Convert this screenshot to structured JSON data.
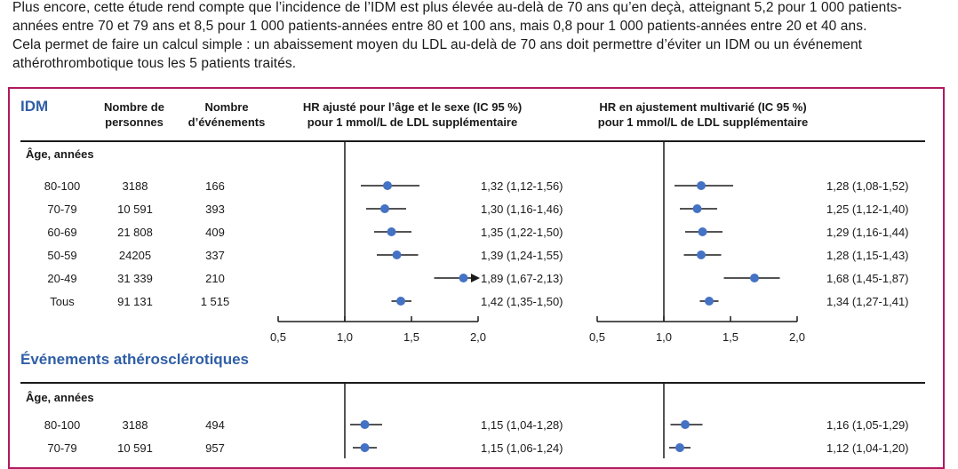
{
  "intro": {
    "lines": [
      "Plus encore, cette étude rend compte que l’incidence de l’IDM est plus élevée au-delà de 70 ans qu’en deçà, atteignant 5,2 pour 1 000 patients-",
      "années entre 70 et 79 ans et 8,5 pour 1 000 patients-années entre 80 et 100 ans, mais 0,8 pour 1 000 patients-années entre 20 et 40 ans.",
      "Cela permet de faire un calcul simple : un abaissement moyen du LDL au-delà de 70 ans doit permettre d’éviter un IDM ou un événement",
      "athérothrombotique tous les 5 patients traités."
    ]
  },
  "table": {
    "headers": {
      "persons": "Nombre de\npersonnes",
      "events": "Nombre\nd’événements",
      "hr_age_sex": "HR ajusté pour l’âge et le sexe (IC 95 %)\npour 1 mmol/L de LDL supplémentaire",
      "hr_multi": "HR en ajustement multivarié (IC 95 %)\npour 1 mmol/L de LDL supplémentaire"
    },
    "sections": [
      {
        "title": "IDM",
        "group_label": "Âge, années",
        "rows": [
          {
            "age": "80-100",
            "persons": "3188",
            "events": "166",
            "hr1": "1,32 (1,12-1,56)",
            "hr2": "1,28 (1,08-1,52)"
          },
          {
            "age": "70-79",
            "persons": "10 591",
            "events": "393",
            "hr1": "1,30 (1,16-1,46)",
            "hr2": "1,25 (1,12-1,40)"
          },
          {
            "age": "60-69",
            "persons": "21 808",
            "events": "409",
            "hr1": "1,35 (1,22-1,50)",
            "hr2": "1,29 (1,16-1,44)"
          },
          {
            "age": "50-59",
            "persons": "24205",
            "events": "337",
            "hr1": "1,39 (1,24-1,55)",
            "hr2": "1,28 (1,15-1,43)"
          },
          {
            "age": "20-49",
            "persons": "31 339",
            "events": "210",
            "hr1": "1,89 (1,67-2,13)",
            "hr2": "1,68 (1,45-1,87)"
          },
          {
            "age": "Tous",
            "persons": "91 131",
            "events": "1 515",
            "hr1": "1,42 (1,35-1,50)",
            "hr2": "1,34 (1,27-1,41)"
          }
        ]
      },
      {
        "title": "Événements athérosclérotiques",
        "group_label": "Âge, années",
        "rows": [
          {
            "age": "80-100",
            "persons": "3188",
            "events": "494",
            "hr1": "1,15 (1,04-1,28)",
            "hr2": "1,16 (1,05-1,29)"
          },
          {
            "age": "70-79",
            "persons": "10 591",
            "events": "957",
            "hr1": "1,15 (1,06-1,24)",
            "hr2": "1,12 (1,04-1,20)"
          }
        ]
      }
    ]
  },
  "chart_data": {
    "type": "forest",
    "colors": {
      "point": "#4472c4",
      "frame": "#b0195f",
      "section_title": "#2f5ea6"
    },
    "axis": {
      "xlim": [
        0.5,
        2.0
      ],
      "reference": 1.0,
      "ticks": [
        "0,5",
        "1,0",
        "1,5",
        "2,0"
      ],
      "tick_values": [
        0.5,
        1.0,
        1.5,
        2.0
      ]
    },
    "panels": [
      {
        "name": "HR ajusté pour l’âge et le sexe (IC 95 %)",
        "sections": [
          {
            "title": "IDM",
            "points": [
              {
                "label": "80-100",
                "hr": 1.32,
                "lo": 1.12,
                "hi": 1.56
              },
              {
                "label": "70-79",
                "hr": 1.3,
                "lo": 1.16,
                "hi": 1.46
              },
              {
                "label": "60-69",
                "hr": 1.35,
                "lo": 1.22,
                "hi": 1.5
              },
              {
                "label": "50-59",
                "hr": 1.39,
                "lo": 1.24,
                "hi": 1.55
              },
              {
                "label": "20-49",
                "hr": 1.89,
                "lo": 1.67,
                "hi": 2.13,
                "arrow": true
              },
              {
                "label": "Tous",
                "hr": 1.42,
                "lo": 1.35,
                "hi": 1.5
              }
            ]
          },
          {
            "title": "Événements athérosclérotiques",
            "points": [
              {
                "label": "80-100",
                "hr": 1.15,
                "lo": 1.04,
                "hi": 1.28
              },
              {
                "label": "70-79",
                "hr": 1.15,
                "lo": 1.06,
                "hi": 1.24
              }
            ]
          }
        ]
      },
      {
        "name": "HR en ajustement multivarié (IC 95 %)",
        "sections": [
          {
            "title": "IDM",
            "points": [
              {
                "label": "80-100",
                "hr": 1.28,
                "lo": 1.08,
                "hi": 1.52
              },
              {
                "label": "70-79",
                "hr": 1.25,
                "lo": 1.12,
                "hi": 1.4
              },
              {
                "label": "60-69",
                "hr": 1.29,
                "lo": 1.16,
                "hi": 1.44
              },
              {
                "label": "50-59",
                "hr": 1.28,
                "lo": 1.15,
                "hi": 1.43
              },
              {
                "label": "20-49",
                "hr": 1.68,
                "lo": 1.45,
                "hi": 1.87
              },
              {
                "label": "Tous",
                "hr": 1.34,
                "lo": 1.27,
                "hi": 1.41
              }
            ]
          },
          {
            "title": "Événements athérosclérotiques",
            "points": [
              {
                "label": "80-100",
                "hr": 1.16,
                "lo": 1.05,
                "hi": 1.29
              },
              {
                "label": "70-79",
                "hr": 1.12,
                "lo": 1.04,
                "hi": 1.2
              }
            ]
          }
        ]
      }
    ]
  }
}
